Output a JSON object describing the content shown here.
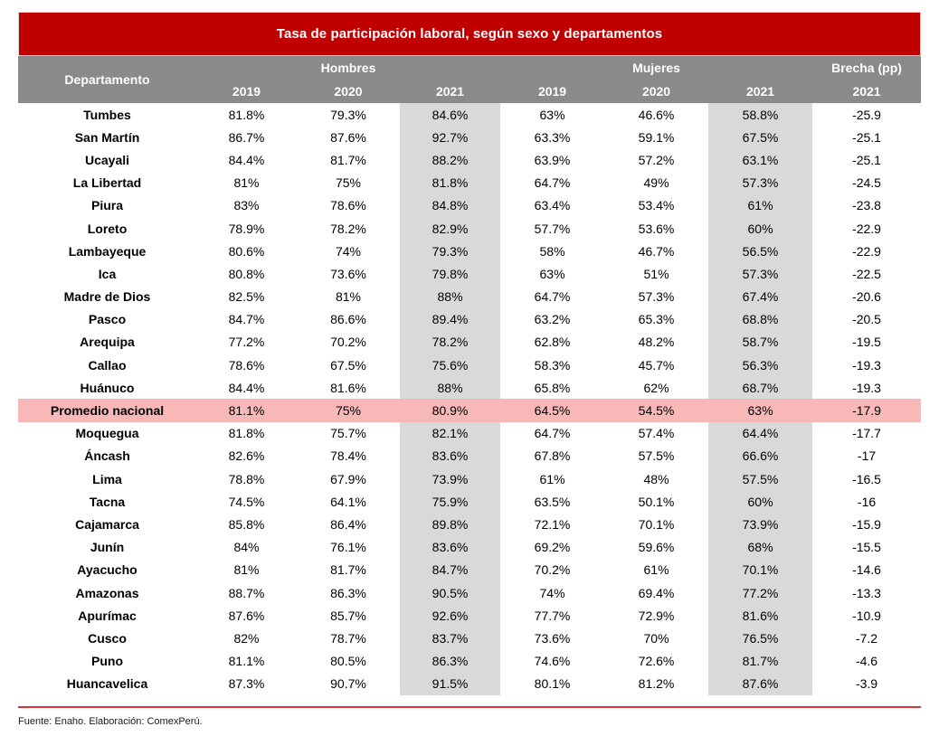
{
  "chart_data": {
    "type": "table",
    "title": "Tasa de participación laboral, según sexo y departamentos",
    "first_column_header": "Departamento",
    "column_groups": [
      {
        "label": "Hombres",
        "years": [
          "2019",
          "2020",
          "2021"
        ]
      },
      {
        "label": "Mujeres",
        "years": [
          "2019",
          "2020",
          "2021"
        ]
      },
      {
        "label": "Brecha (pp)",
        "years": [
          "2021"
        ]
      }
    ],
    "year_labels": [
      "2019",
      "2020",
      "2021",
      "2019",
      "2020",
      "2021",
      "2021"
    ],
    "highlighted_year_columns": [
      "Hombres 2021",
      "Mujeres 2021"
    ],
    "highlighted_row": "Promedio nacional",
    "rows": [
      {
        "departamento": "Tumbes",
        "hombres": [
          "81.8%",
          "79.3%",
          "84.6%"
        ],
        "mujeres": [
          "63%",
          "46.6%",
          "58.8%"
        ],
        "brecha_pp_2021": "-25.9",
        "highlight": false
      },
      {
        "departamento": "San Martín",
        "hombres": [
          "86.7%",
          "87.6%",
          "92.7%"
        ],
        "mujeres": [
          "63.3%",
          "59.1%",
          "67.5%"
        ],
        "brecha_pp_2021": "-25.1",
        "highlight": false
      },
      {
        "departamento": "Ucayali",
        "hombres": [
          "84.4%",
          "81.7%",
          "88.2%"
        ],
        "mujeres": [
          "63.9%",
          "57.2%",
          "63.1%"
        ],
        "brecha_pp_2021": "-25.1",
        "highlight": false
      },
      {
        "departamento": "La Libertad",
        "hombres": [
          "81%",
          "75%",
          "81.8%"
        ],
        "mujeres": [
          "64.7%",
          "49%",
          "57.3%"
        ],
        "brecha_pp_2021": "-24.5",
        "highlight": false
      },
      {
        "departamento": "Piura",
        "hombres": [
          "83%",
          "78.6%",
          "84.8%"
        ],
        "mujeres": [
          "63.4%",
          "53.4%",
          "61%"
        ],
        "brecha_pp_2021": "-23.8",
        "highlight": false
      },
      {
        "departamento": "Loreto",
        "hombres": [
          "78.9%",
          "78.2%",
          "82.9%"
        ],
        "mujeres": [
          "57.7%",
          "53.6%",
          "60%"
        ],
        "brecha_pp_2021": "-22.9",
        "highlight": false
      },
      {
        "departamento": "Lambayeque",
        "hombres": [
          "80.6%",
          "74%",
          "79.3%"
        ],
        "mujeres": [
          "58%",
          "46.7%",
          "56.5%"
        ],
        "brecha_pp_2021": "-22.9",
        "highlight": false
      },
      {
        "departamento": "Ica",
        "hombres": [
          "80.8%",
          "73.6%",
          "79.8%"
        ],
        "mujeres": [
          "63%",
          "51%",
          "57.3%"
        ],
        "brecha_pp_2021": "-22.5",
        "highlight": false
      },
      {
        "departamento": "Madre de Dios",
        "hombres": [
          "82.5%",
          "81%",
          "88%"
        ],
        "mujeres": [
          "64.7%",
          "57.3%",
          "67.4%"
        ],
        "brecha_pp_2021": "-20.6",
        "highlight": false
      },
      {
        "departamento": "Pasco",
        "hombres": [
          "84.7%",
          "86.6%",
          "89.4%"
        ],
        "mujeres": [
          "63.2%",
          "65.3%",
          "68.8%"
        ],
        "brecha_pp_2021": "-20.5",
        "highlight": false
      },
      {
        "departamento": "Arequipa",
        "hombres": [
          "77.2%",
          "70.2%",
          "78.2%"
        ],
        "mujeres": [
          "62.8%",
          "48.2%",
          "58.7%"
        ],
        "brecha_pp_2021": "-19.5",
        "highlight": false
      },
      {
        "departamento": "Callao",
        "hombres": [
          "78.6%",
          "67.5%",
          "75.6%"
        ],
        "mujeres": [
          "58.3%",
          "45.7%",
          "56.3%"
        ],
        "brecha_pp_2021": "-19.3",
        "highlight": false
      },
      {
        "departamento": "Huánuco",
        "hombres": [
          "84.4%",
          "81.6%",
          "88%"
        ],
        "mujeres": [
          "65.8%",
          "62%",
          "68.7%"
        ],
        "brecha_pp_2021": "-19.3",
        "highlight": false
      },
      {
        "departamento": "Promedio nacional",
        "hombres": [
          "81.1%",
          "75%",
          "80.9%"
        ],
        "mujeres": [
          "64.5%",
          "54.5%",
          "63%"
        ],
        "brecha_pp_2021": "-17.9",
        "highlight": true
      },
      {
        "departamento": "Moquegua",
        "hombres": [
          "81.8%",
          "75.7%",
          "82.1%"
        ],
        "mujeres": [
          "64.7%",
          "57.4%",
          "64.4%"
        ],
        "brecha_pp_2021": "-17.7",
        "highlight": false
      },
      {
        "departamento": "Áncash",
        "hombres": [
          "82.6%",
          "78.4%",
          "83.6%"
        ],
        "mujeres": [
          "67.8%",
          "57.5%",
          "66.6%"
        ],
        "brecha_pp_2021": "-17",
        "highlight": false
      },
      {
        "departamento": "Lima",
        "hombres": [
          "78.8%",
          "67.9%",
          "73.9%"
        ],
        "mujeres": [
          "61%",
          "48%",
          "57.5%"
        ],
        "brecha_pp_2021": "-16.5",
        "highlight": false
      },
      {
        "departamento": "Tacna",
        "hombres": [
          "74.5%",
          "64.1%",
          "75.9%"
        ],
        "mujeres": [
          "63.5%",
          "50.1%",
          "60%"
        ],
        "brecha_pp_2021": "-16",
        "highlight": false
      },
      {
        "departamento": "Cajamarca",
        "hombres": [
          "85.8%",
          "86.4%",
          "89.8%"
        ],
        "mujeres": [
          "72.1%",
          "70.1%",
          "73.9%"
        ],
        "brecha_pp_2021": "-15.9",
        "highlight": false
      },
      {
        "departamento": "Junín",
        "hombres": [
          "84%",
          "76.1%",
          "83.6%"
        ],
        "mujeres": [
          "69.2%",
          "59.6%",
          "68%"
        ],
        "brecha_pp_2021": "-15.5",
        "highlight": false
      },
      {
        "departamento": "Ayacucho",
        "hombres": [
          "81%",
          "81.7%",
          "84.7%"
        ],
        "mujeres": [
          "70.2%",
          "61%",
          "70.1%"
        ],
        "brecha_pp_2021": "-14.6",
        "highlight": false
      },
      {
        "departamento": "Amazonas",
        "hombres": [
          "88.7%",
          "86.3%",
          "90.5%"
        ],
        "mujeres": [
          "74%",
          "69.4%",
          "77.2%"
        ],
        "brecha_pp_2021": "-13.3",
        "highlight": false
      },
      {
        "departamento": "Apurímac",
        "hombres": [
          "87.6%",
          "85.7%",
          "92.6%"
        ],
        "mujeres": [
          "77.7%",
          "72.9%",
          "81.6%"
        ],
        "brecha_pp_2021": "-10.9",
        "highlight": false
      },
      {
        "departamento": "Cusco",
        "hombres": [
          "82%",
          "78.7%",
          "83.7%"
        ],
        "mujeres": [
          "73.6%",
          "70%",
          "76.5%"
        ],
        "brecha_pp_2021": "-7.2",
        "highlight": false
      },
      {
        "departamento": "Puno",
        "hombres": [
          "81.1%",
          "80.5%",
          "86.3%"
        ],
        "mujeres": [
          "74.6%",
          "72.6%",
          "81.7%"
        ],
        "brecha_pp_2021": "-4.6",
        "highlight": false
      },
      {
        "departamento": "Huancavelica",
        "hombres": [
          "87.3%",
          "90.7%",
          "91.5%"
        ],
        "mujeres": [
          "80.1%",
          "81.2%",
          "87.6%"
        ],
        "brecha_pp_2021": "-3.9",
        "highlight": false
      }
    ],
    "source_note": "Fuente: Enaho. Elaboración: ComexPerú.",
    "colors": {
      "title_bar": "#C00000",
      "header_bg": "#8A8A8A",
      "header_text": "#FFFFFF",
      "column_highlight": "#D9D9D9",
      "row_highlight": "#F9B8B8",
      "footer_rule": "#DD3333"
    }
  }
}
